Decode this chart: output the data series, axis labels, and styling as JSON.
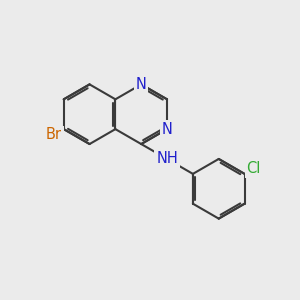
{
  "bg_color": "#ebebeb",
  "bond_color": "#3a3a3a",
  "bond_width": 1.5,
  "atom_colors": {
    "N": "#2020cc",
    "Br": "#cc6600",
    "Cl": "#33aa33"
  },
  "font_size": 10.5
}
